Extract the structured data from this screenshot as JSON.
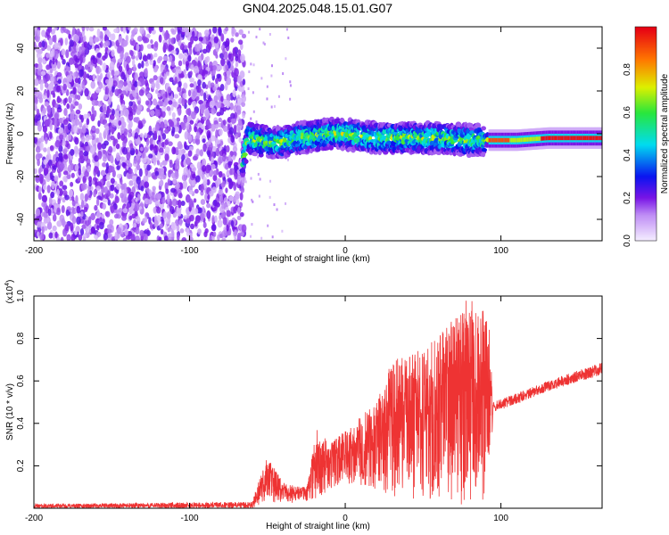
{
  "title": "GN04.2025.048.15.01.G07",
  "chart_data": [
    {
      "type": "heatmap",
      "xlabel": "Height of straight line (km)",
      "ylabel": "Frequency (Hz)",
      "xlim": [
        -200,
        165
      ],
      "ylim": [
        -50,
        50
      ],
      "xticks": [
        -200,
        -100,
        0,
        100
      ],
      "yticks": [
        -40,
        -20,
        0,
        20,
        40
      ],
      "colorbar": {
        "label": "Normalized spectral amplitude",
        "range": [
          0,
          1
        ],
        "ticks": [
          0.0,
          0.2,
          0.4,
          0.6,
          0.8
        ]
      },
      "noise_region_x": [
        -200,
        -65
      ],
      "signal_trace": [
        {
          "x": -65,
          "y": -10
        },
        {
          "x": -62,
          "y": -2
        },
        {
          "x": -50,
          "y": -4
        },
        {
          "x": -40,
          "y": -4
        },
        {
          "x": -30,
          "y": -2
        },
        {
          "x": -10,
          "y": 0
        },
        {
          "x": 0,
          "y": 0
        },
        {
          "x": 20,
          "y": -2
        },
        {
          "x": 40,
          "y": -2
        },
        {
          "x": 60,
          "y": -2
        },
        {
          "x": 80,
          "y": -3
        },
        {
          "x": 90,
          "y": -3
        },
        {
          "x": 110,
          "y": -3
        },
        {
          "x": 130,
          "y": -2
        },
        {
          "x": 165,
          "y": -2
        }
      ]
    },
    {
      "type": "line",
      "xlabel": "Height of straight line (km)",
      "ylabel": "SNR (10 * v/v)",
      "y_multiplier": "(x10",
      "y_multiplier_exp": "4",
      "y_multiplier_close": ")",
      "xlim": [
        -200,
        165
      ],
      "ylim": [
        0,
        1.0
      ],
      "xticks": [
        -200,
        -100,
        0,
        100
      ],
      "yticks": [
        0.2,
        0.4,
        0.6,
        0.8,
        1.0
      ],
      "series": [
        {
          "color": "#ee3333",
          "envelope": [
            {
              "x": -200,
              "lo": 0.0,
              "hi": 0.02
            },
            {
              "x": -60,
              "lo": 0.0,
              "hi": 0.03
            },
            {
              "x": -50,
              "lo": 0.02,
              "hi": 0.25
            },
            {
              "x": -40,
              "lo": 0.02,
              "hi": 0.12
            },
            {
              "x": -25,
              "lo": 0.03,
              "hi": 0.1
            },
            {
              "x": -18,
              "lo": 0.05,
              "hi": 0.38
            },
            {
              "x": -10,
              "lo": 0.08,
              "hi": 0.3
            },
            {
              "x": 0,
              "lo": 0.1,
              "hi": 0.37
            },
            {
              "x": 20,
              "lo": 0.08,
              "hi": 0.5
            },
            {
              "x": 30,
              "lo": 0.05,
              "hi": 0.7
            },
            {
              "x": 50,
              "lo": 0.03,
              "hi": 0.75
            },
            {
              "x": 65,
              "lo": 0.02,
              "hi": 0.85
            },
            {
              "x": 78,
              "lo": 0.01,
              "hi": 1.0
            },
            {
              "x": 92,
              "lo": 0.01,
              "hi": 0.92
            },
            {
              "x": 95,
              "lo": 0.45,
              "hi": 0.5
            },
            {
              "x": 130,
              "lo": 0.55,
              "hi": 0.6
            },
            {
              "x": 165,
              "lo": 0.63,
              "hi": 0.69
            }
          ]
        }
      ]
    }
  ]
}
